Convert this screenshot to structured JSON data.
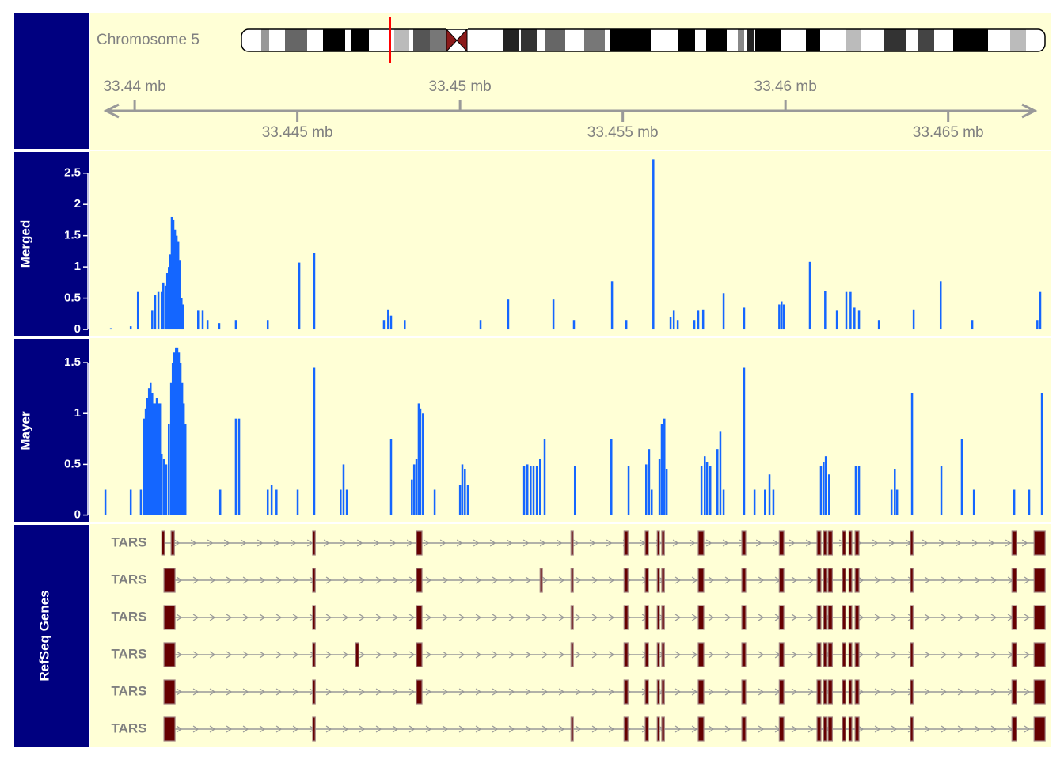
{
  "chromosome": "Chromosome 5",
  "axis": {
    "xlim": [
      33.439,
      33.468
    ],
    "xticks": [
      {
        "value": 33.44,
        "label": "33.44 mb"
      },
      {
        "value": 33.445,
        "label": "33.445 mb"
      },
      {
        "value": 33.45,
        "label": "33.45 mb"
      },
      {
        "value": 33.455,
        "label": "33.455 mb"
      },
      {
        "value": 33.46,
        "label": "33.46 mb"
      },
      {
        "value": 33.465,
        "label": "33.465 mb"
      }
    ]
  },
  "chart_data": [
    {
      "type": "bar",
      "title": "Merged",
      "color": "#1466ff",
      "ylim": [
        -0.05,
        2.75
      ],
      "yticks": [
        0,
        0.5,
        1,
        1.5,
        2,
        2.5
      ],
      "x": [
        33.43927,
        33.43988,
        33.4401,
        33.44054,
        33.44063,
        33.44073,
        33.44083,
        33.44088,
        33.44095,
        33.441,
        33.44105,
        33.44109,
        33.44114,
        33.44119,
        33.44124,
        33.44129,
        33.44134,
        33.44139,
        33.44144,
        33.44148,
        33.44195,
        33.44209,
        33.44224,
        33.4426,
        33.44311,
        33.44409,
        33.44506,
        33.44552,
        33.44766,
        33.44779,
        33.44788,
        33.4483,
        33.45063,
        33.45148,
        33.45287,
        33.4535,
        33.45467,
        33.45511,
        33.45594,
        33.45647,
        33.45657,
        33.45669,
        33.4572,
        33.45732,
        33.45747,
        33.4581,
        33.45873,
        33.45981,
        33.45988,
        33.45995,
        33.46075,
        33.46122,
        33.46158,
        33.46187,
        33.462,
        33.46212,
        33.46226,
        33.46287,
        33.46394,
        33.46477,
        33.46574,
        33.46774,
        33.46783
      ],
      "values": [
        0.02,
        0.05,
        0.6,
        0.3,
        0.55,
        0.6,
        0.6,
        0.75,
        0.7,
        0.9,
        1.0,
        1.2,
        1.8,
        1.75,
        1.6,
        1.5,
        1.4,
        1.1,
        0.5,
        0.4,
        0.3,
        0.3,
        0.15,
        0.1,
        0.15,
        0.15,
        1.07,
        1.22,
        0.15,
        0.32,
        0.22,
        0.15,
        0.15,
        0.48,
        0.48,
        0.15,
        0.77,
        0.15,
        2.72,
        0.2,
        0.3,
        0.15,
        0.15,
        0.3,
        0.32,
        0.58,
        0.35,
        0.4,
        0.45,
        0.4,
        1.08,
        0.62,
        0.3,
        0.6,
        0.6,
        0.35,
        0.3,
        0.15,
        0.32,
        0.77,
        0.15,
        0.15,
        0.6
      ]
    },
    {
      "type": "bar",
      "title": "Mayer",
      "color": "#1466ff",
      "ylim": [
        -0.05,
        1.68
      ],
      "yticks": [
        0,
        0.5,
        1,
        1.5
      ],
      "x": [
        33.4391,
        33.43988,
        33.44019,
        33.44029,
        33.44034,
        33.44039,
        33.44044,
        33.44049,
        33.44054,
        33.44058,
        33.44063,
        33.44068,
        33.44073,
        33.44078,
        33.44083,
        33.4409,
        33.44097,
        33.44105,
        33.44112,
        33.44117,
        33.44122,
        33.44127,
        33.44131,
        33.44136,
        33.44141,
        33.44146,
        33.44151,
        33.44156,
        33.44263,
        33.44311,
        33.44321,
        33.44409,
        33.44421,
        33.44436,
        33.44501,
        33.44552,
        33.44633,
        33.44642,
        33.44652,
        33.44788,
        33.44852,
        33.44859,
        33.44866,
        33.44873,
        33.44878,
        33.44886,
        33.44922,
        33.45,
        33.45007,
        33.45015,
        33.45024,
        33.45197,
        33.45207,
        33.45217,
        33.45226,
        33.45236,
        33.45246,
        33.4526,
        33.45353,
        33.45465,
        33.45518,
        33.45572,
        33.45581,
        33.45589,
        33.45613,
        33.4562,
        33.45628,
        33.45635,
        33.45742,
        33.45752,
        33.45759,
        33.45769,
        33.45791,
        33.458,
        33.4581,
        33.45873,
        33.45905,
        33.45937,
        33.45951,
        33.45963,
        33.46109,
        33.46117,
        33.46124,
        33.46134,
        33.46216,
        33.46226,
        33.46326,
        33.46336,
        33.46343,
        33.46389,
        33.46479,
        33.46542,
        33.46579,
        33.46703,
        33.46749,
        33.46788
      ],
      "values": [
        0.25,
        0.25,
        0.25,
        0.95,
        1.05,
        1.15,
        1.25,
        1.3,
        1.2,
        1.1,
        1.1,
        1.15,
        1.1,
        1.1,
        0.6,
        0.55,
        0.5,
        0.9,
        1.3,
        1.5,
        1.6,
        1.65,
        1.65,
        1.6,
        1.5,
        1.3,
        1.1,
        0.9,
        0.25,
        0.95,
        0.95,
        0.25,
        0.3,
        0.25,
        0.25,
        1.45,
        0.25,
        0.5,
        0.25,
        0.75,
        0.35,
        0.5,
        0.55,
        1.1,
        1.05,
        1.0,
        0.25,
        0.3,
        0.5,
        0.45,
        0.3,
        0.48,
        0.5,
        0.48,
        0.48,
        0.48,
        0.55,
        0.75,
        0.48,
        0.75,
        0.48,
        0.5,
        0.65,
        0.25,
        0.55,
        0.9,
        0.95,
        0.45,
        0.48,
        0.58,
        0.52,
        0.48,
        0.65,
        0.82,
        0.25,
        1.45,
        0.25,
        0.25,
        0.4,
        0.25,
        0.48,
        0.52,
        0.58,
        0.4,
        0.48,
        0.48,
        0.25,
        0.45,
        0.25,
        1.2,
        0.48,
        0.75,
        0.25,
        0.25,
        0.25,
        1.2
      ]
    }
  ],
  "genes": {
    "title": "RefSeq Genes",
    "color": "#660000",
    "transcripts": [
      {
        "name": "TARS",
        "exons": [
          [
            33.44083,
            33.44092
          ],
          [
            33.44112,
            33.44122
          ],
          [
            33.44547,
            33.44555
          ],
          [
            33.44866,
            33.44883
          ],
          [
            33.45341,
            33.45348
          ],
          [
            33.45504,
            33.45516
          ],
          [
            33.45569,
            33.45579
          ],
          [
            33.45606,
            33.45613
          ],
          [
            33.4562,
            33.45628
          ],
          [
            33.45732,
            33.45749
          ],
          [
            33.45866,
            33.45878
          ],
          [
            33.45981,
            33.45995
          ],
          [
            33.46097,
            33.46109
          ],
          [
            33.46117,
            33.46126
          ],
          [
            33.46131,
            33.46144
          ],
          [
            33.46175,
            33.46185
          ],
          [
            33.46195,
            33.46204
          ],
          [
            33.46214,
            33.46226
          ],
          [
            33.46384,
            33.46392
          ],
          [
            33.46696,
            33.4671
          ],
          [
            33.46764,
            33.46798
          ]
        ]
      },
      {
        "name": "TARS",
        "exons": [
          [
            33.4409,
            33.44124
          ],
          [
            33.44547,
            33.44555
          ],
          [
            33.44866,
            33.44883
          ],
          [
            33.45246,
            33.45253
          ],
          [
            33.45341,
            33.45348
          ],
          [
            33.45504,
            33.45516
          ],
          [
            33.45569,
            33.45579
          ],
          [
            33.45606,
            33.45613
          ],
          [
            33.4562,
            33.45628
          ],
          [
            33.45732,
            33.45749
          ],
          [
            33.45866,
            33.45878
          ],
          [
            33.45981,
            33.45995
          ],
          [
            33.46097,
            33.46109
          ],
          [
            33.46117,
            33.46126
          ],
          [
            33.46131,
            33.46144
          ],
          [
            33.46175,
            33.46185
          ],
          [
            33.46195,
            33.46204
          ],
          [
            33.46214,
            33.46226
          ],
          [
            33.46384,
            33.46392
          ],
          [
            33.46696,
            33.4671
          ],
          [
            33.46764,
            33.46798
          ]
        ]
      },
      {
        "name": "TARS",
        "exons": [
          [
            33.4409,
            33.44124
          ],
          [
            33.44547,
            33.44555
          ],
          [
            33.44866,
            33.44883
          ],
          [
            33.45341,
            33.45348
          ],
          [
            33.45504,
            33.45516
          ],
          [
            33.45569,
            33.45579
          ],
          [
            33.45606,
            33.45613
          ],
          [
            33.4562,
            33.45628
          ],
          [
            33.45732,
            33.45749
          ],
          [
            33.45866,
            33.45878
          ],
          [
            33.45981,
            33.45995
          ],
          [
            33.46097,
            33.46109
          ],
          [
            33.46117,
            33.46126
          ],
          [
            33.46131,
            33.46144
          ],
          [
            33.46175,
            33.46185
          ],
          [
            33.46195,
            33.46204
          ],
          [
            33.46214,
            33.46226
          ],
          [
            33.46384,
            33.46392
          ],
          [
            33.46696,
            33.4671
          ],
          [
            33.46764,
            33.46798
          ]
        ]
      },
      {
        "name": "TARS",
        "exons": [
          [
            33.4409,
            33.44124
          ],
          [
            33.44547,
            33.44555
          ],
          [
            33.44679,
            33.44689
          ],
          [
            33.44866,
            33.44883
          ],
          [
            33.45341,
            33.45348
          ],
          [
            33.45504,
            33.45516
          ],
          [
            33.45569,
            33.45579
          ],
          [
            33.45606,
            33.45613
          ],
          [
            33.4562,
            33.45628
          ],
          [
            33.45732,
            33.45749
          ],
          [
            33.45866,
            33.45878
          ],
          [
            33.45981,
            33.45995
          ],
          [
            33.46097,
            33.46109
          ],
          [
            33.46117,
            33.46126
          ],
          [
            33.46131,
            33.46144
          ],
          [
            33.46175,
            33.46185
          ],
          [
            33.46195,
            33.46204
          ],
          [
            33.46214,
            33.46226
          ],
          [
            33.46384,
            33.46392
          ],
          [
            33.46696,
            33.4671
          ],
          [
            33.46764,
            33.46798
          ]
        ]
      },
      {
        "name": "TARS",
        "exons": [
          [
            33.4409,
            33.44124
          ],
          [
            33.44547,
            33.44555
          ],
          [
            33.44866,
            33.44883
          ],
          [
            33.45504,
            33.45516
          ],
          [
            33.45569,
            33.45579
          ],
          [
            33.45606,
            33.45613
          ],
          [
            33.4562,
            33.45628
          ],
          [
            33.45732,
            33.45749
          ],
          [
            33.45866,
            33.45878
          ],
          [
            33.45981,
            33.45995
          ],
          [
            33.46097,
            33.46109
          ],
          [
            33.46117,
            33.46126
          ],
          [
            33.46131,
            33.46144
          ],
          [
            33.46175,
            33.46185
          ],
          [
            33.46195,
            33.46204
          ],
          [
            33.46214,
            33.46226
          ],
          [
            33.46384,
            33.46392
          ],
          [
            33.46696,
            33.4671
          ],
          [
            33.46764,
            33.46798
          ]
        ]
      },
      {
        "name": "TARS",
        "exons": [
          [
            33.4409,
            33.44124
          ],
          [
            33.44547,
            33.44555
          ],
          [
            33.45341,
            33.45348
          ],
          [
            33.45504,
            33.45516
          ],
          [
            33.45569,
            33.45579
          ],
          [
            33.45606,
            33.45613
          ],
          [
            33.4562,
            33.45628
          ],
          [
            33.45732,
            33.45749
          ],
          [
            33.45866,
            33.45878
          ],
          [
            33.45981,
            33.45995
          ],
          [
            33.46097,
            33.46109
          ],
          [
            33.46117,
            33.46126
          ],
          [
            33.46131,
            33.46144
          ],
          [
            33.46175,
            33.46185
          ],
          [
            33.46195,
            33.46204
          ],
          [
            33.46214,
            33.46226
          ],
          [
            33.46384,
            33.46392
          ],
          [
            33.46696,
            33.4671
          ],
          [
            33.46764,
            33.46798
          ]
        ]
      }
    ]
  }
}
